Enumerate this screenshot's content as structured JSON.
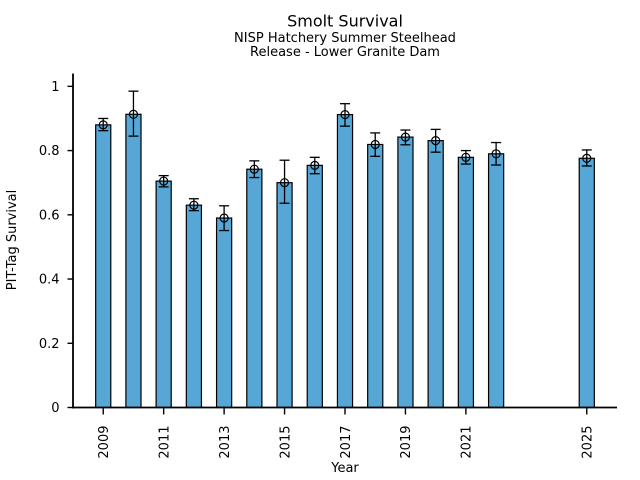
{
  "chart_data": {
    "type": "bar",
    "title": "Smolt Survival",
    "subtitle": [
      "NISP Hatchery Summer Steelhead",
      "Release - Lower Granite Dam"
    ],
    "xlabel": "Year",
    "ylabel": "PIT-Tag Survival",
    "xlim": [
      2008,
      2026
    ],
    "ylim": [
      0,
      1.04
    ],
    "grid": false,
    "legend": "none",
    "x_tick_years": [
      "2009",
      "2011",
      "2013",
      "2015",
      "2017",
      "2019",
      "2021",
      "2025"
    ],
    "x_tick_rotation_deg": 90,
    "y_tick_values": [
      0,
      0.2,
      0.4,
      0.6,
      0.8,
      1
    ],
    "y_tick_labels": [
      "0",
      "0.2",
      "0.4",
      "0.6",
      "0.8",
      "1"
    ],
    "bar_width_years": 0.5,
    "marker": "open-circle",
    "error_caps": true,
    "colors": {
      "bar_fill": "#56A6D6",
      "bar_edge": "#000000",
      "error": "#000000",
      "axis": "#000000"
    },
    "points": [
      {
        "year": 2009,
        "value": 0.88,
        "ci_low": 0.862,
        "ci_high": 0.9
      },
      {
        "year": 2010,
        "value": 0.913,
        "ci_low": 0.845,
        "ci_high": 0.985
      },
      {
        "year": 2011,
        "value": 0.705,
        "ci_low": 0.687,
        "ci_high": 0.722
      },
      {
        "year": 2012,
        "value": 0.63,
        "ci_low": 0.613,
        "ci_high": 0.65
      },
      {
        "year": 2013,
        "value": 0.59,
        "ci_low": 0.551,
        "ci_high": 0.628
      },
      {
        "year": 2014,
        "value": 0.742,
        "ci_low": 0.716,
        "ci_high": 0.768
      },
      {
        "year": 2015,
        "value": 0.7,
        "ci_low": 0.636,
        "ci_high": 0.77
      },
      {
        "year": 2016,
        "value": 0.754,
        "ci_low": 0.728,
        "ci_high": 0.779
      },
      {
        "year": 2017,
        "value": 0.912,
        "ci_low": 0.876,
        "ci_high": 0.946
      },
      {
        "year": 2018,
        "value": 0.819,
        "ci_low": 0.782,
        "ci_high": 0.855
      },
      {
        "year": 2019,
        "value": 0.842,
        "ci_low": 0.818,
        "ci_high": 0.864
      },
      {
        "year": 2020,
        "value": 0.831,
        "ci_low": 0.795,
        "ci_high": 0.866
      },
      {
        "year": 2021,
        "value": 0.779,
        "ci_low": 0.758,
        "ci_high": 0.8
      },
      {
        "year": 2022,
        "value": 0.79,
        "ci_low": 0.755,
        "ci_high": 0.825
      },
      {
        "year": 2025,
        "value": 0.776,
        "ci_low": 0.752,
        "ci_high": 0.802
      }
    ]
  }
}
